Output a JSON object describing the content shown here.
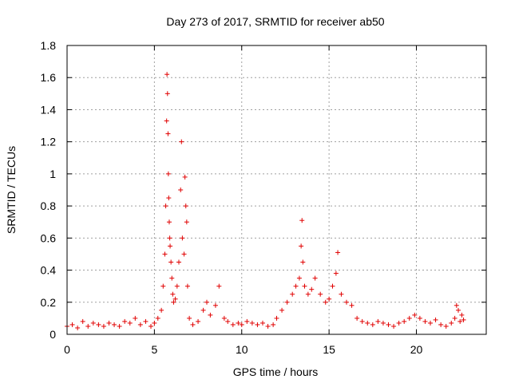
{
  "chart_data": {
    "type": "scatter",
    "title": "Day 273 of 2017, SRMTID for receiver ab50",
    "xlabel": "GPS time / hours",
    "ylabel": "SRMTID / TECUs",
    "xlim": [
      0,
      24
    ],
    "ylim": [
      0,
      1.8
    ],
    "x_ticks": [
      0,
      5,
      10,
      15,
      20
    ],
    "x_tick_labels": [
      "0",
      "5",
      "10",
      "15",
      "20"
    ],
    "y_ticks": [
      0,
      0.2,
      0.4,
      0.6,
      0.8,
      1.0,
      1.2,
      1.4,
      1.6,
      1.8
    ],
    "y_tick_labels": [
      "0",
      "0.2",
      "0.4",
      "0.6",
      "0.8",
      "1",
      "1.2",
      "1.4",
      "1.6",
      "1.8"
    ],
    "grid": true,
    "marker": "plus",
    "color": "#e00000",
    "series": [
      {
        "name": "SRMTID",
        "x": [
          0.0,
          0.3,
          0.6,
          0.9,
          1.2,
          1.5,
          1.8,
          2.1,
          2.4,
          2.7,
          3.0,
          3.3,
          3.6,
          3.9,
          4.2,
          4.5,
          4.8,
          5.0,
          5.2,
          5.4,
          5.5,
          5.6,
          5.65,
          5.7,
          5.72,
          5.75,
          5.78,
          5.8,
          5.82,
          5.85,
          5.88,
          5.9,
          5.95,
          6.0,
          6.05,
          6.1,
          6.2,
          6.3,
          6.4,
          6.5,
          6.55,
          6.6,
          6.7,
          6.75,
          6.8,
          6.85,
          6.9,
          7.0,
          7.2,
          7.5,
          7.8,
          8.0,
          8.2,
          8.5,
          8.7,
          9.0,
          9.2,
          9.5,
          9.8,
          10.0,
          10.3,
          10.6,
          10.9,
          11.2,
          11.5,
          11.8,
          12.0,
          12.3,
          12.6,
          12.9,
          13.1,
          13.3,
          13.4,
          13.45,
          13.5,
          13.6,
          13.8,
          14.0,
          14.2,
          14.5,
          14.8,
          15.0,
          15.2,
          15.4,
          15.5,
          15.7,
          16.0,
          16.3,
          16.6,
          16.9,
          17.2,
          17.5,
          17.8,
          18.1,
          18.4,
          18.7,
          19.0,
          19.3,
          19.6,
          19.9,
          20.2,
          20.5,
          20.8,
          21.1,
          21.4,
          21.7,
          22.0,
          22.2,
          22.3,
          22.4,
          22.5,
          22.6,
          22.7
        ],
        "y": [
          0.05,
          0.06,
          0.04,
          0.08,
          0.05,
          0.07,
          0.06,
          0.05,
          0.07,
          0.06,
          0.05,
          0.08,
          0.07,
          0.1,
          0.06,
          0.08,
          0.05,
          0.07,
          0.1,
          0.15,
          0.3,
          0.5,
          0.8,
          1.33,
          1.62,
          1.5,
          1.25,
          1.0,
          0.85,
          0.7,
          0.6,
          0.55,
          0.45,
          0.35,
          0.25,
          0.2,
          0.22,
          0.3,
          0.45,
          0.9,
          1.2,
          0.6,
          0.5,
          0.98,
          0.8,
          0.7,
          0.3,
          0.1,
          0.06,
          0.08,
          0.15,
          0.2,
          0.12,
          0.18,
          0.3,
          0.1,
          0.08,
          0.06,
          0.07,
          0.06,
          0.08,
          0.07,
          0.06,
          0.07,
          0.05,
          0.06,
          0.1,
          0.15,
          0.2,
          0.25,
          0.3,
          0.35,
          0.55,
          0.71,
          0.45,
          0.3,
          0.25,
          0.28,
          0.35,
          0.25,
          0.2,
          0.22,
          0.3,
          0.38,
          0.51,
          0.25,
          0.2,
          0.18,
          0.1,
          0.08,
          0.07,
          0.06,
          0.08,
          0.07,
          0.06,
          0.05,
          0.07,
          0.08,
          0.1,
          0.12,
          0.1,
          0.08,
          0.07,
          0.09,
          0.06,
          0.05,
          0.07,
          0.1,
          0.18,
          0.15,
          0.08,
          0.12,
          0.09
        ]
      }
    ]
  }
}
